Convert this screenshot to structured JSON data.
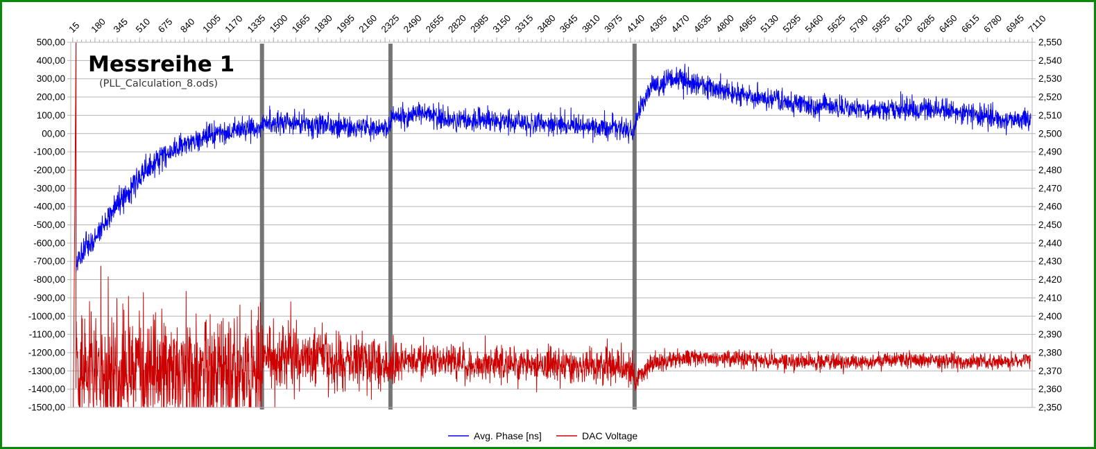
{
  "chart_data": {
    "type": "line",
    "title": "Messreihe 1",
    "subtitle": "(PLL_Calculation_8.ods)",
    "x_tick_labels": [
      "15",
      "180",
      "345",
      "510",
      "675",
      "840",
      "1005",
      "1170",
      "1335",
      "1500",
      "1665",
      "1830",
      "1995",
      "2160",
      "2325",
      "2490",
      "2655",
      "2820",
      "2985",
      "3150",
      "3315",
      "3480",
      "3645",
      "3810",
      "3975",
      "4140",
      "4305",
      "4470",
      "4635",
      "4800",
      "4965",
      "5130",
      "5295",
      "5460",
      "5625",
      "5790",
      "5955",
      "6120",
      "6285",
      "6450",
      "6615",
      "6780",
      "6945",
      "7110"
    ],
    "x_range": [
      1,
      7110
    ],
    "left_axis": {
      "range": [
        -1500,
        500
      ],
      "step": 100,
      "tick_labels": [
        "500,00",
        "400,00",
        "300,00",
        "200,00",
        "100,00",
        "00,00",
        "-100,00",
        "-200,00",
        "-300,00",
        "-400,00",
        "-500,00",
        "-600,00",
        "-700,00",
        "-800,00",
        "-900,00",
        "-1000,00",
        "-1100,00",
        "-1200,00",
        "-1300,00",
        "-1400,00",
        "-1500,00"
      ]
    },
    "right_axis": {
      "range": [
        2.35,
        2.55
      ],
      "step": 0.01,
      "tick_labels": [
        "2,550",
        "2,540",
        "2,530",
        "2,520",
        "2,510",
        "2,500",
        "2,490",
        "2,480",
        "2,470",
        "2,460",
        "2,450",
        "2,440",
        "2,430",
        "2,420",
        "2,410",
        "2,400",
        "2,390",
        "2,380",
        "2,370",
        "2,360",
        "2,350"
      ]
    },
    "grid": true,
    "legend_position": "bottom-center",
    "markers_x": [
      1415,
      2365,
      4170
    ],
    "marker_color": "#6e6e6e",
    "series": [
      {
        "name": "Avg. Phase [ns]",
        "axis": "left",
        "color": "#0000ee",
        "x": [
          40,
          100,
          200,
          350,
          500,
          700,
          900,
          1100,
          1300,
          1400,
          1430,
          1600,
          1800,
          2000,
          2200,
          2340,
          2380,
          2600,
          2800,
          3000,
          3200,
          3400,
          3600,
          3800,
          4000,
          4160,
          4200,
          4300,
          4500,
          4700,
          4900,
          5100,
          5300,
          5500,
          5700,
          5900,
          6100,
          6300,
          6500,
          6700,
          6900,
          7100
        ],
        "y": [
          -720,
          -640,
          -560,
          -380,
          -250,
          -110,
          -40,
          0,
          20,
          30,
          50,
          60,
          50,
          40,
          30,
          20,
          90,
          110,
          80,
          70,
          60,
          55,
          50,
          40,
          30,
          20,
          120,
          260,
          300,
          260,
          220,
          200,
          170,
          150,
          140,
          130,
          130,
          140,
          120,
          100,
          80,
          70
        ],
        "noise": [
          50,
          50,
          50,
          50,
          45,
          45,
          40,
          40,
          40,
          40,
          45,
          45,
          45,
          40,
          40,
          40,
          40,
          40,
          40,
          40,
          40,
          40,
          40,
          40,
          40,
          40,
          35,
          40,
          45,
          45,
          40,
          40,
          40,
          40,
          40,
          40,
          40,
          40,
          40,
          40,
          40,
          40
        ]
      },
      {
        "name": "DAC Voltage",
        "axis": "right",
        "color": "#cc0000",
        "x": [
          40,
          100,
          300,
          600,
          900,
          1200,
          1400,
          1430,
          1600,
          1800,
          2000,
          2200,
          2360,
          2380,
          2600,
          2800,
          3000,
          3200,
          3400,
          3600,
          3800,
          4000,
          4160,
          4175,
          4200,
          4300,
          4500,
          4700,
          4900,
          5100,
          5300,
          5500,
          5700,
          5900,
          6100,
          6300,
          6500,
          6700,
          6900,
          7100
        ],
        "y": [
          2.37,
          2.37,
          2.37,
          2.37,
          2.37,
          2.37,
          2.37,
          2.375,
          2.378,
          2.378,
          2.376,
          2.375,
          2.372,
          2.375,
          2.376,
          2.375,
          2.374,
          2.374,
          2.374,
          2.373,
          2.373,
          2.373,
          2.373,
          2.362,
          2.368,
          2.374,
          2.377,
          2.377,
          2.376,
          2.376,
          2.375,
          2.375,
          2.375,
          2.375,
          2.376,
          2.376,
          2.375,
          2.375,
          2.375,
          2.376
        ],
        "noise": [
          0.022,
          0.022,
          0.022,
          0.022,
          0.022,
          0.022,
          0.022,
          0.012,
          0.012,
          0.011,
          0.01,
          0.009,
          0.008,
          0.007,
          0.007,
          0.006,
          0.006,
          0.006,
          0.006,
          0.006,
          0.006,
          0.006,
          0.006,
          0.004,
          0.004,
          0.004,
          0.003,
          0.003,
          0.003,
          0.003,
          0.003,
          0.003,
          0.003,
          0.003,
          0.003,
          0.003,
          0.003,
          0.003,
          0.003,
          0.003
        ]
      }
    ]
  }
}
